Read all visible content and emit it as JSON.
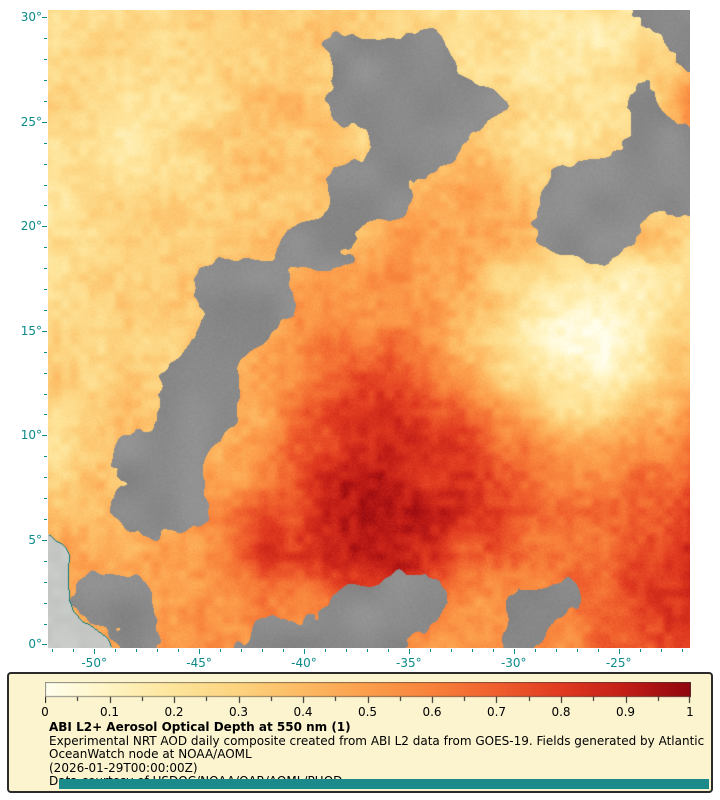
{
  "figure": {
    "background": "#FFFFFF"
  },
  "map": {
    "axis_color": "#0B8A8A",
    "gray_nodata_color": "#8C8C8C",
    "land_color": "#C6CBC6",
    "coast_color": "#0E7C7C"
  },
  "legend": {
    "panel_bg": "#FBF4CF",
    "panel_border": "#2B2B2B",
    "title": "ABI L2+ Aerosol Optical Depth at 550 nm (1)",
    "description": "Experimental NRT AOD daily composite created from ABI L2 data from GOES-19. Fields generated by Atlantic OceanWatch node at NOAA/AOML",
    "timestamp": "(2026-01-29T00:00:00Z)",
    "credit": "Data courtesy of USDOC/NOAA/OAR/AOML/PHOD",
    "footer_strip_color": "#1B8A8A"
  },
  "chart_data": {
    "type": "heatmap",
    "title": "ABI L2+ Aerosol Optical Depth at 550 nm (1)",
    "variable": "Aerosol Optical Depth at 550 nm",
    "lon_range": [
      -52.2,
      -21.6
    ],
    "lat_range": [
      -0.17,
      30.35
    ],
    "x_ticks": [
      {
        "value": -50,
        "label": "-50°"
      },
      {
        "value": -45,
        "label": "-45°"
      },
      {
        "value": -40,
        "label": "-40°"
      },
      {
        "value": -35,
        "label": "-35°"
      },
      {
        "value": -30,
        "label": "-30°"
      },
      {
        "value": -25,
        "label": "-25°"
      }
    ],
    "y_ticks": [
      {
        "value": 30,
        "label": "30°"
      },
      {
        "value": 25,
        "label": "25°"
      },
      {
        "value": 20,
        "label": "20°"
      },
      {
        "value": 15,
        "label": "15°"
      },
      {
        "value": 10,
        "label": "10°"
      },
      {
        "value": 5,
        "label": "5°"
      },
      {
        "value": 0,
        "label": "0°"
      }
    ],
    "colorbar": {
      "min": 0,
      "max": 1,
      "tick_labels": [
        "0",
        "0.1",
        "0.2",
        "0.3",
        "0.4",
        "0.5",
        "0.6",
        "0.7",
        "0.8",
        "0.9",
        "1"
      ],
      "stops": [
        {
          "value": 0.0,
          "color": "#FFFFEF"
        },
        {
          "value": 0.1,
          "color": "#FFF4C2"
        },
        {
          "value": 0.2,
          "color": "#FEE59B"
        },
        {
          "value": 0.3,
          "color": "#FDD37F"
        },
        {
          "value": 0.4,
          "color": "#FDBA63"
        },
        {
          "value": 0.5,
          "color": "#FC9E4C"
        },
        {
          "value": 0.6,
          "color": "#F8823B"
        },
        {
          "value": 0.7,
          "color": "#F05F2D"
        },
        {
          "value": 0.8,
          "color": "#E03A20"
        },
        {
          "value": 0.9,
          "color": "#C21E17"
        },
        {
          "value": 1.0,
          "color": "#90060E"
        }
      ]
    },
    "grid": {
      "comment": "Coarse AOD field sampled on a 16x15 lon/lat grid, rows from lat 30N (top) to 0N (bottom), cols from lon -52.2 to -21.6. -1 = no data (gray), -2 = land.",
      "nodata_value": -1,
      "land_value": -2,
      "nx": 16,
      "ny": 15,
      "values": [
        [
          0.25,
          0.25,
          0.28,
          0.3,
          0.28,
          0.26,
          0.3,
          0.32,
          0.28,
          0.22,
          0.18,
          0.15,
          0.15,
          0.2,
          -1,
          -1
        ],
        [
          0.28,
          0.3,
          0.33,
          0.3,
          0.28,
          0.3,
          0.3,
          -1,
          -1,
          -1,
          0.2,
          0.15,
          0.14,
          0.18,
          0.28,
          -1
        ],
        [
          0.22,
          0.26,
          0.3,
          0.32,
          0.3,
          0.34,
          0.3,
          -1,
          -1,
          -1,
          -1,
          0.2,
          0.18,
          0.15,
          -1,
          0.55
        ],
        [
          0.2,
          0.22,
          0.26,
          0.3,
          0.32,
          0.34,
          0.34,
          0.3,
          -1,
          -1,
          0.3,
          0.25,
          0.2,
          0.2,
          -1,
          -1
        ],
        [
          0.24,
          0.25,
          0.26,
          0.3,
          0.3,
          0.32,
          0.35,
          -1,
          -1,
          0.4,
          0.45,
          0.35,
          -1,
          -1,
          -1,
          -1
        ],
        [
          0.26,
          0.3,
          0.3,
          0.3,
          0.32,
          0.35,
          -1,
          -1,
          0.45,
          0.5,
          0.45,
          0.4,
          -1,
          -1,
          0.3,
          0.25
        ],
        [
          0.28,
          0.3,
          0.3,
          0.34,
          -1,
          -1,
          0.4,
          0.46,
          0.5,
          0.5,
          0.45,
          0.3,
          0.2,
          0.15,
          0.15,
          0.22
        ],
        [
          0.3,
          0.3,
          0.34,
          0.36,
          -1,
          -1,
          0.5,
          0.56,
          0.6,
          0.55,
          0.4,
          0.25,
          0.14,
          0.1,
          0.15,
          0.25
        ],
        [
          0.3,
          0.32,
          0.35,
          -1,
          -1,
          0.5,
          0.62,
          0.72,
          0.75,
          0.7,
          0.5,
          0.3,
          0.15,
          0.12,
          0.2,
          0.35
        ],
        [
          0.32,
          0.34,
          0.36,
          -1,
          -1,
          0.55,
          0.7,
          0.8,
          0.85,
          0.8,
          0.7,
          0.5,
          0.32,
          0.3,
          0.4,
          0.5
        ],
        [
          0.34,
          0.36,
          -1,
          -1,
          0.5,
          0.66,
          0.8,
          0.88,
          0.9,
          0.85,
          0.8,
          0.7,
          0.52,
          0.5,
          0.55,
          0.62
        ],
        [
          0.4,
          0.42,
          -1,
          -1,
          0.55,
          0.7,
          0.85,
          0.92,
          0.95,
          0.9,
          0.85,
          0.8,
          0.7,
          0.66,
          0.72,
          0.82
        ],
        [
          -2,
          0.46,
          0.5,
          0.55,
          0.6,
          0.75,
          0.85,
          0.9,
          0.9,
          0.85,
          0.8,
          0.76,
          0.72,
          0.76,
          0.82,
          0.92
        ],
        [
          -2,
          -1,
          -1,
          0.5,
          0.55,
          0.6,
          0.5,
          -1,
          -1,
          -1,
          0.6,
          -1,
          -1,
          0.7,
          0.8,
          0.86
        ],
        [
          -2,
          -2,
          -1,
          0.45,
          0.5,
          -1,
          -1,
          -1,
          -1,
          0.5,
          0.55,
          -1,
          0.52,
          0.62,
          0.72,
          0.76
        ]
      ]
    }
  }
}
